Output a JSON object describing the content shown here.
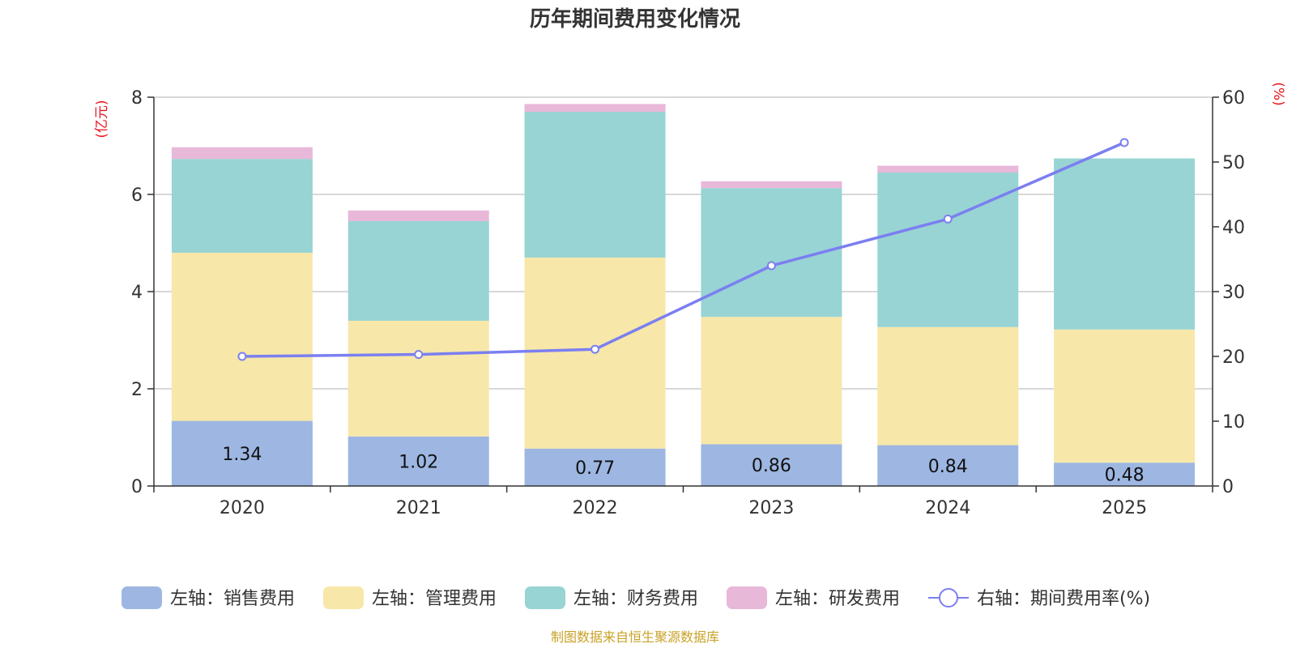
{
  "chart_data": {
    "type": "bar",
    "title": "历年期间费用变化情况",
    "categories": [
      "2020",
      "2021",
      "2022",
      "2023",
      "2024",
      "2025"
    ],
    "left_axis": {
      "unit_label": "(亿元)",
      "ylim": [
        0,
        8
      ],
      "ticks": [
        "0",
        "2",
        "4",
        "6",
        "8"
      ]
    },
    "right_axis": {
      "unit_label": "(%)",
      "ylim": [
        0,
        60
      ],
      "ticks": [
        "0",
        "10",
        "20",
        "30",
        "40",
        "50",
        "60"
      ]
    },
    "series": [
      {
        "name": "左轴：销售费用",
        "type": "bar",
        "axis": "left",
        "stack": true,
        "color": "#9db7e2",
        "values": [
          1.34,
          1.02,
          0.77,
          0.86,
          0.84,
          0.48
        ],
        "labels": [
          "1.34",
          "1.02",
          "0.77",
          "0.86",
          "0.84",
          "0.48"
        ]
      },
      {
        "name": "左轴：管理费用",
        "type": "bar",
        "axis": "left",
        "stack": true,
        "color": "#f7e7a9",
        "values": [
          3.46,
          2.38,
          3.93,
          2.62,
          2.43,
          2.74
        ]
      },
      {
        "name": "左轴：财务费用",
        "type": "bar",
        "axis": "left",
        "stack": true,
        "color": "#98d4d4",
        "values": [
          1.93,
          2.05,
          3.0,
          2.65,
          3.18,
          3.52
        ]
      },
      {
        "name": "左轴：研发费用",
        "type": "bar",
        "axis": "left",
        "stack": true,
        "color": "#e8b8d9",
        "values": [
          0.24,
          0.22,
          0.16,
          0.14,
          0.14,
          0.0
        ]
      },
      {
        "name": "右轴：期间费用率(%)",
        "type": "line",
        "axis": "right",
        "color": "#7b7ff0",
        "values": [
          20.0,
          20.3,
          21.1,
          34.0,
          41.2,
          53.0
        ]
      }
    ],
    "grid": true,
    "legend_position": "bottom"
  },
  "footer": {
    "source": "制图数据来自恒生聚源数据库"
  }
}
